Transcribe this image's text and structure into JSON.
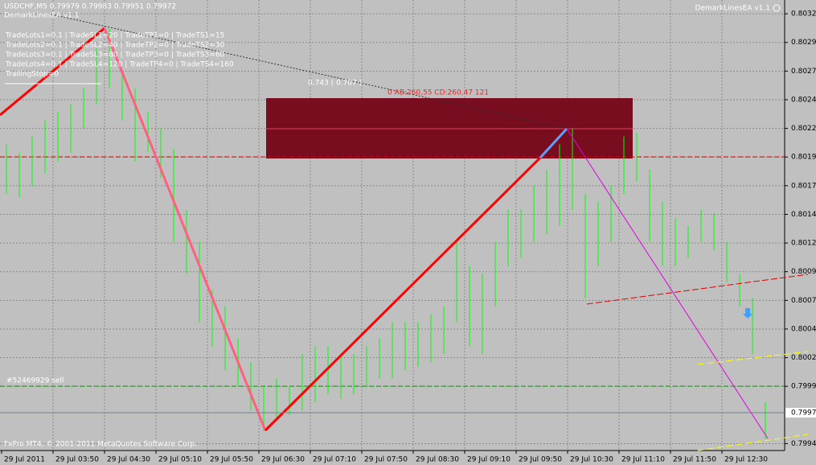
{
  "header": {
    "symbol_line": "USDCHF,M5  0.79979 0.79983 0.79951 0.79972",
    "ea_name": "DemarkLinesEA  v1.1",
    "ea_name_right": "DemarkLinesEA  v1.1",
    "settings": [
      "TradeLots1=0.1  |  TradeSL1=20  |  TradeTP1=0  |  TradeTS1=15",
      "TradeLots2=0.1  |  TradeSL2=40  |  TradeTP2=0  |  TradeTS2=30",
      "TradeLots3=0.1  |  TradeSL3=80  |  TradeTP3=0  |  TradeTS3=60",
      "TradeLots4=0.1  |  TradeSL4=120  |  TradeTP4=0  |  TradeTS4=160",
      "TrailingStop=0"
    ]
  },
  "annotations": {
    "ratio": "0.743 ( 0.707 )",
    "pattern": "0   AB:260,55 CD:260,47   121",
    "order": "#52469929 sell",
    "copyright": "FxPro MT4, © 2001-2011 MetaQuotes Software Corp."
  },
  "chart_data": {
    "type": "hl-bar",
    "color": "#00ff00",
    "grid": true,
    "x_labels": [
      "29 Jul 2011",
      "29 Jul 03:50",
      "29 Jul 04:30",
      "29 Jul 05:10",
      "29 Jul 05:50",
      "29 Jul 06:30",
      "29 Jul 07:10",
      "29 Jul 07:50",
      "29 Jul 08:30",
      "29 Jul 09:10",
      "29 Jul 09:50",
      "29 Jul 10:30",
      "29 Jul 11:10",
      "29 Jul 11:50",
      "29 Jul 12:30"
    ],
    "ylim": [
      0.79939,
      0.80332
    ],
    "yticks": [
      {
        "value": 0.8032,
        "label": "0.80320"
      },
      {
        "value": 0.80295,
        "label": "0.80295"
      },
      {
        "value": 0.8027,
        "label": "0.80270"
      },
      {
        "value": 0.80245,
        "label": "0.80245"
      },
      {
        "value": 0.8022,
        "label": "0.80220"
      },
      {
        "value": 0.80195,
        "label": "0.80195"
      },
      {
        "value": 0.8017,
        "label": "0.80170"
      },
      {
        "value": 0.80145,
        "label": "0.80145"
      },
      {
        "value": 0.8012,
        "label": "0.80120"
      },
      {
        "value": 0.80095,
        "label": "0.80095"
      },
      {
        "value": 0.8007,
        "label": "0.80070"
      },
      {
        "value": 0.80045,
        "label": "0.80045"
      },
      {
        "value": 0.8002,
        "label": "0.80020"
      },
      {
        "value": 0.79995,
        "label": "0.79995"
      },
      {
        "value": 0.79945,
        "label": "0.79945"
      }
    ],
    "current_price": {
      "value": 0.79972,
      "label": "0.79972"
    },
    "high": [
      0.80206,
      0.80199,
      0.80213,
      0.80227,
      0.80234,
      0.80241,
      0.80255,
      0.8029,
      0.80307,
      0.80269,
      0.80255,
      0.80234,
      0.8022,
      0.80202,
      0.80149,
      0.80121,
      0.80079,
      0.80065,
      0.80037,
      0.80016,
      0.79995,
      0.80002,
      0.79995,
      0.80023,
      0.8003,
      0.8003,
      0.80023,
      0.80023,
      0.8003,
      0.80037,
      0.80051,
      0.80051,
      0.80051,
      0.80058,
      0.80065,
      0.80121,
      0.801,
      0.80093,
      0.80121,
      0.80149,
      0.80149,
      0.8017,
      0.80184,
      0.80206,
      0.8022,
      0.80163,
      0.80156,
      0.8017,
      0.80213,
      0.80216,
      0.80184,
      0.80156,
      0.80142,
      0.80135,
      0.80149,
      0.80146,
      0.80121,
      0.80093,
      0.80072,
      0.79981
    ],
    "low": [
      0.80163,
      0.8016,
      0.8017,
      0.80181,
      0.80191,
      0.80199,
      0.8022,
      0.80241,
      0.80255,
      0.80227,
      0.80191,
      0.80199,
      0.80177,
      0.80121,
      0.80093,
      0.80051,
      0.8003,
      0.80009,
      0.79995,
      0.79974,
      0.79956,
      0.79967,
      0.7997,
      0.79974,
      0.79981,
      0.79988,
      0.79984,
      0.79988,
      0.79995,
      0.80002,
      0.80002,
      0.80009,
      0.80012,
      0.80016,
      0.80023,
      0.80051,
      0.8003,
      0.80023,
      0.80065,
      0.801,
      0.80107,
      0.80121,
      0.80128,
      0.80135,
      0.80149,
      0.80072,
      0.801,
      0.80121,
      0.80163,
      0.80174,
      0.80121,
      0.801,
      0.801,
      0.80107,
      0.80121,
      0.80114,
      0.80086,
      0.80065,
      0.80023,
      0.79949
    ]
  }
}
